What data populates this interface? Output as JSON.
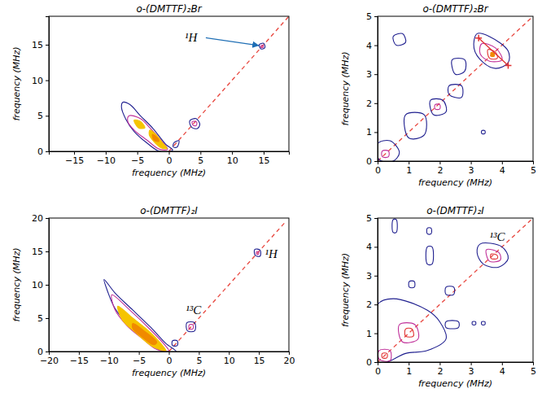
{
  "chart_data": [
    {
      "type": "contour",
      "title": "o-(DMTTF)₂Br",
      "x_label": "frequency (MHz)",
      "y_label": "frequency (MHz)",
      "xlim": [
        -19,
        19
      ],
      "ylim": [
        0,
        19
      ],
      "xticks": [
        -15,
        -10,
        -5,
        0,
        5,
        10,
        15
      ],
      "yticks": [
        0,
        5,
        10,
        15
      ],
      "series": [
        {
          "type": "line",
          "color": "#e8473f",
          "line_style": "dashed",
          "x": [
            0,
            19
          ],
          "y": [
            0,
            19
          ]
        },
        {
          "type": "contour",
          "color": "#1f1f8f",
          "x": [
            -7.3,
            -6.2,
            -4.5,
            -2.5,
            -0.5,
            0.6,
            0.3,
            -1.5,
            -3.5,
            -5.5,
            -6.8,
            -7.5
          ],
          "y": [
            6.9,
            6.6,
            5.0,
            3.2,
            1.0,
            0.2,
            0.0,
            0.0,
            1.2,
            2.8,
            4.5,
            6.2
          ]
        },
        {
          "type": "contour",
          "color": "#c0309a",
          "x": [
            -6.3,
            -4.5,
            -3.0,
            -1.2,
            -0.2,
            -1.5,
            -3.5,
            -5.5,
            -6.5
          ],
          "y": [
            5.0,
            4.6,
            3.3,
            1.5,
            0.3,
            0.3,
            1.6,
            3.0,
            4.2
          ]
        },
        {
          "type": "filled_contour",
          "color": "#f5c400",
          "x": [
            -5.5,
            -4.5,
            -3.8,
            -4.8
          ],
          "y": [
            4.4,
            4.2,
            3.3,
            3.3
          ]
        },
        {
          "type": "filled_contour",
          "color": "#f5c400",
          "x": [
            -3.0,
            -2.0,
            -1.0,
            -0.3,
            -1.2,
            -2.4,
            -3.1
          ],
          "y": [
            3.0,
            2.3,
            1.2,
            0.4,
            0.5,
            1.4,
            2.3
          ]
        },
        {
          "type": "filled_contour",
          "color": "#f08a00",
          "x": [
            -2.6,
            -1.8,
            -1.6,
            -2.4
          ],
          "y": [
            2.4,
            1.9,
            1.4,
            1.6
          ]
        },
        {
          "type": "contour",
          "color": "#1f1f8f",
          "x": [
            0.8,
            1.6,
            1.3,
            0.7
          ],
          "y": [
            1.2,
            1.5,
            0.6,
            0.6
          ]
        },
        {
          "type": "contour",
          "color": "#1f1f8f",
          "x": [
            3.3,
            4.3,
            4.9,
            4.5,
            3.6
          ],
          "y": [
            4.3,
            4.6,
            3.8,
            3.2,
            3.4
          ]
        },
        {
          "type": "contour",
          "color": "#c0309a",
          "x": [
            3.7,
            4.4,
            4.3,
            3.8
          ],
          "y": [
            4.2,
            4.1,
            3.6,
            3.7
          ]
        },
        {
          "type": "contour",
          "color": "#1f1f8f",
          "x": [
            14.3,
            15.0,
            15.2,
            14.6
          ],
          "y": [
            15.0,
            15.2,
            14.6,
            14.4
          ]
        },
        {
          "type": "contour",
          "color": "#c0309a",
          "x": [
            14.6,
            14.9,
            14.9,
            14.6
          ],
          "y": [
            14.9,
            14.9,
            14.6,
            14.6
          ]
        }
      ],
      "annotations": [
        {
          "text": "¹H",
          "x": 2.5,
          "y": 15.4,
          "arrow_to": [
            14.2,
            14.9
          ]
        }
      ]
    },
    {
      "type": "contour",
      "title": "o-(DMTTF)₂Br",
      "x_label": "frequency (MHz)",
      "y_label": "frequency (MHz)",
      "xlim": [
        0,
        5
      ],
      "ylim": [
        0,
        5
      ],
      "xticks": [
        0,
        1,
        2,
        3,
        4,
        5
      ],
      "yticks": [
        0,
        1,
        2,
        3,
        4,
        5
      ],
      "series": [
        {
          "type": "line",
          "color": "#e8473f",
          "line_style": "dashed",
          "x": [
            0,
            5
          ],
          "y": [
            0,
            5
          ]
        },
        {
          "type": "contour",
          "color": "#1f1f8f",
          "x": [
            3.2,
            3.6,
            4.2,
            4.2,
            3.8,
            3.4,
            3.1
          ],
          "y": [
            4.4,
            4.3,
            3.8,
            3.4,
            3.2,
            3.4,
            3.9
          ]
        },
        {
          "type": "contour",
          "color": "#c0309a",
          "x": [
            3.35,
            3.8,
            4.0,
            3.6,
            3.3
          ],
          "y": [
            4.05,
            3.9,
            3.5,
            3.45,
            3.7
          ]
        },
        {
          "type": "contour",
          "color": "#e03030",
          "x": [
            3.55,
            3.8,
            3.85,
            3.6
          ],
          "y": [
            3.85,
            3.75,
            3.55,
            3.55
          ]
        },
        {
          "type": "filled_contour",
          "color": "#f08a00",
          "x": [
            3.65,
            3.75,
            3.75,
            3.65
          ],
          "y": [
            3.75,
            3.72,
            3.62,
            3.62
          ]
        },
        {
          "type": "line",
          "color": "#e03030",
          "marker": "plus",
          "x": [
            3.25,
            4.2
          ],
          "y": [
            4.25,
            3.3
          ]
        },
        {
          "type": "contour",
          "color": "#1f1f8f",
          "x": [
            0.0,
            0.4,
            0.7,
            0.5,
            0.05
          ],
          "y": [
            0.6,
            0.7,
            0.3,
            0.0,
            0.05
          ]
        },
        {
          "type": "contour",
          "color": "#c0309a",
          "x": [
            0.15,
            0.35,
            0.35,
            0.15
          ],
          "y": [
            0.35,
            0.35,
            0.15,
            0.15
          ]
        },
        {
          "type": "contour",
          "color": "#1f1f8f",
          "x": [
            0.9,
            1.5,
            1.5,
            1.0
          ],
          "y": [
            1.6,
            1.6,
            0.9,
            0.8
          ]
        },
        {
          "type": "contour",
          "color": "#1f1f8f",
          "x": [
            1.7,
            2.1,
            2.2,
            1.8
          ],
          "y": [
            2.1,
            2.1,
            1.7,
            1.6
          ]
        },
        {
          "type": "contour",
          "color": "#c0309a",
          "x": [
            1.85,
            2.0,
            2.0,
            1.85
          ],
          "y": [
            1.95,
            1.95,
            1.8,
            1.8
          ]
        },
        {
          "type": "contour",
          "color": "#1f1f8f",
          "x": [
            2.3,
            2.7,
            2.7,
            2.3
          ],
          "y": [
            2.6,
            2.6,
            2.2,
            2.3
          ]
        },
        {
          "type": "contour",
          "color": "#1f1f8f",
          "x": [
            2.4,
            2.8,
            2.8,
            2.5
          ],
          "y": [
            3.5,
            3.5,
            3.1,
            3.0
          ]
        },
        {
          "type": "contour",
          "color": "#1f1f8f",
          "x": [
            0.5,
            0.8,
            0.9,
            0.6
          ],
          "y": [
            4.3,
            4.4,
            4.1,
            4.0
          ]
        },
        {
          "type": "contour",
          "color": "#1f1f8f",
          "x": [
            3.35,
            3.45,
            3.45,
            3.35
          ],
          "y": [
            1.05,
            1.05,
            0.95,
            0.95
          ]
        }
      ]
    },
    {
      "type": "contour",
      "title": "o-(DMTTF)₂I",
      "x_label": "frequency (MHz)",
      "y_label": "frequency (MHz)",
      "xlim": [
        -20,
        20
      ],
      "ylim": [
        0,
        20
      ],
      "xticks": [
        -20,
        -15,
        -10,
        -5,
        0,
        5,
        10,
        15,
        20
      ],
      "yticks": [
        0,
        5,
        10,
        15,
        20
      ],
      "series": [
        {
          "type": "line",
          "color": "#e8473f",
          "line_style": "dashed",
          "x": [
            0,
            19.5
          ],
          "y": [
            0,
            19.5
          ]
        },
        {
          "type": "contour",
          "color": "#1f1f8f",
          "x": [
            -10.8,
            -9.0,
            -6.0,
            -3.0,
            -0.5,
            1.2,
            -1.0,
            -3.5,
            -6.5,
            -9.0,
            -10.2
          ],
          "y": [
            10.8,
            8.8,
            6.2,
            3.6,
            1.2,
            0.0,
            0.0,
            1.5,
            3.8,
            6.5,
            9.0
          ]
        },
        {
          "type": "contour",
          "color": "#c0309a",
          "x": [
            -9.5,
            -6.5,
            -3.0,
            -0.6,
            0.0,
            -2.0,
            -4.5,
            -7.0,
            -9.0
          ],
          "y": [
            8.5,
            6.2,
            3.2,
            0.9,
            0.1,
            0.3,
            2.0,
            3.9,
            6.3
          ]
        },
        {
          "type": "filled_contour",
          "color": "#f5c400",
          "x": [
            -8.5,
            -6.0,
            -3.0,
            -0.8,
            -0.5,
            -2.8,
            -5.5,
            -7.8
          ],
          "y": [
            6.8,
            5.0,
            2.8,
            0.6,
            0.1,
            0.8,
            2.8,
            4.8
          ]
        },
        {
          "type": "filled_contour",
          "color": "#f08a00",
          "x": [
            -6.0,
            -4.0,
            -2.0,
            -2.5,
            -4.5,
            -6.0
          ],
          "y": [
            4.2,
            3.0,
            1.4,
            1.0,
            2.2,
            3.4
          ]
        },
        {
          "type": "contour",
          "color": "#1f1f8f",
          "x": [
            0.6,
            1.4,
            1.4,
            0.6
          ],
          "y": [
            1.6,
            1.6,
            0.9,
            0.9
          ]
        },
        {
          "type": "contour",
          "color": "#1f1f8f",
          "x": [
            3.0,
            4.3,
            4.3,
            3.1
          ],
          "y": [
            4.3,
            4.3,
            3.1,
            3.1
          ]
        },
        {
          "type": "contour",
          "color": "#c0309a",
          "x": [
            3.4,
            4.0,
            4.0,
            3.4
          ],
          "y": [
            4.0,
            4.0,
            3.4,
            3.4
          ]
        },
        {
          "type": "contour",
          "color": "#1f1f8f",
          "x": [
            14.3,
            15.2,
            15.2,
            14.4
          ],
          "y": [
            15.3,
            15.2,
            14.3,
            14.4
          ]
        },
        {
          "type": "contour",
          "color": "#c0309a",
          "x": [
            14.6,
            14.95,
            14.95,
            14.6
          ],
          "y": [
            14.95,
            14.95,
            14.6,
            14.6
          ]
        }
      ],
      "annotations": [
        {
          "text": "¹H",
          "x": 16.0,
          "y": 14.0
        },
        {
          "text": "¹³C",
          "x": 2.8,
          "y": 5.6
        }
      ]
    },
    {
      "type": "contour",
      "title": "o-(DMTTF)₂I",
      "x_label": "frequency (MHz)",
      "y_label": "frequency (MHz)",
      "xlim": [
        0,
        5
      ],
      "ylim": [
        0,
        5
      ],
      "xticks": [
        0,
        1,
        2,
        3,
        4,
        5
      ],
      "yticks": [
        0,
        1,
        2,
        3,
        4,
        5
      ],
      "series": [
        {
          "type": "line",
          "color": "#e8473f",
          "line_style": "dashed",
          "x": [
            0,
            5
          ],
          "y": [
            0,
            5
          ]
        },
        {
          "type": "contour",
          "color": "#1f1f8f",
          "x": [
            3.3,
            4.0,
            4.2,
            3.9,
            3.4,
            3.2
          ],
          "y": [
            4.1,
            4.0,
            3.6,
            3.3,
            3.4,
            3.8
          ]
        },
        {
          "type": "contour",
          "color": "#c0309a",
          "x": [
            3.5,
            3.9,
            3.95,
            3.6
          ],
          "y": [
            3.9,
            3.8,
            3.55,
            3.5
          ]
        },
        {
          "type": "contour",
          "color": "#e03030",
          "x": [
            3.65,
            3.85,
            3.85,
            3.65
          ],
          "y": [
            3.75,
            3.7,
            3.6,
            3.6
          ]
        },
        {
          "type": "contour",
          "color": "#1f1f8f",
          "x": [
            0.0,
            0.5,
            1.6,
            2.0,
            2.2,
            1.6,
            0.9,
            0.3,
            0.0
          ],
          "y": [
            2.0,
            2.2,
            1.8,
            1.4,
            0.8,
            0.4,
            0.3,
            0.0,
            0.0
          ]
        },
        {
          "type": "contour",
          "color": "#c0309a",
          "x": [
            0.7,
            1.2,
            1.3,
            0.8
          ],
          "y": [
            1.3,
            1.3,
            0.8,
            0.7
          ]
        },
        {
          "type": "contour",
          "color": "#e03030",
          "x": [
            0.9,
            1.1,
            1.15,
            0.9
          ],
          "y": [
            1.15,
            1.15,
            0.9,
            0.9
          ]
        },
        {
          "type": "contour",
          "color": "#c0309a",
          "x": [
            0.05,
            0.4,
            0.4,
            0.05
          ],
          "y": [
            0.4,
            0.4,
            0.05,
            0.1
          ]
        },
        {
          "type": "contour",
          "color": "#e03030",
          "x": [
            0.15,
            0.3,
            0.3,
            0.15
          ],
          "y": [
            0.3,
            0.3,
            0.15,
            0.15
          ]
        },
        {
          "type": "contour",
          "color": "#1f1f8f",
          "x": [
            0.5,
            0.6,
            0.6,
            0.5
          ],
          "y": [
            4.95,
            4.95,
            4.5,
            4.5
          ]
        },
        {
          "type": "contour",
          "color": "#1f1f8f",
          "x": [
            1.6,
            1.72,
            1.72,
            1.6
          ],
          "y": [
            4.65,
            4.65,
            4.45,
            4.45
          ]
        },
        {
          "type": "contour",
          "color": "#1f1f8f",
          "x": [
            1.6,
            1.75,
            1.75,
            1.6
          ],
          "y": [
            4.0,
            4.0,
            3.4,
            3.4
          ]
        },
        {
          "type": "contour",
          "color": "#1f1f8f",
          "x": [
            1.02,
            1.18,
            1.18,
            1.02
          ],
          "y": [
            2.8,
            2.8,
            2.6,
            2.6
          ]
        },
        {
          "type": "contour",
          "color": "#1f1f8f",
          "x": [
            2.2,
            2.6,
            2.6,
            2.2
          ],
          "y": [
            1.4,
            1.4,
            1.2,
            1.2
          ]
        },
        {
          "type": "contour",
          "color": "#1f1f8f",
          "x": [
            3.05,
            3.15,
            3.15,
            3.05
          ],
          "y": [
            1.4,
            1.4,
            1.3,
            1.3
          ]
        },
        {
          "type": "contour",
          "color": "#1f1f8f",
          "x": [
            3.35,
            3.45,
            3.45,
            3.35
          ],
          "y": [
            1.4,
            1.4,
            1.3,
            1.3
          ]
        },
        {
          "type": "contour",
          "color": "#1f1f8f",
          "x": [
            2.2,
            2.45,
            2.45,
            2.2
          ],
          "y": [
            2.6,
            2.6,
            2.35,
            2.35
          ]
        }
      ],
      "annotations": [
        {
          "text": "¹³C",
          "x": 3.6,
          "y": 4.2
        }
      ]
    }
  ]
}
